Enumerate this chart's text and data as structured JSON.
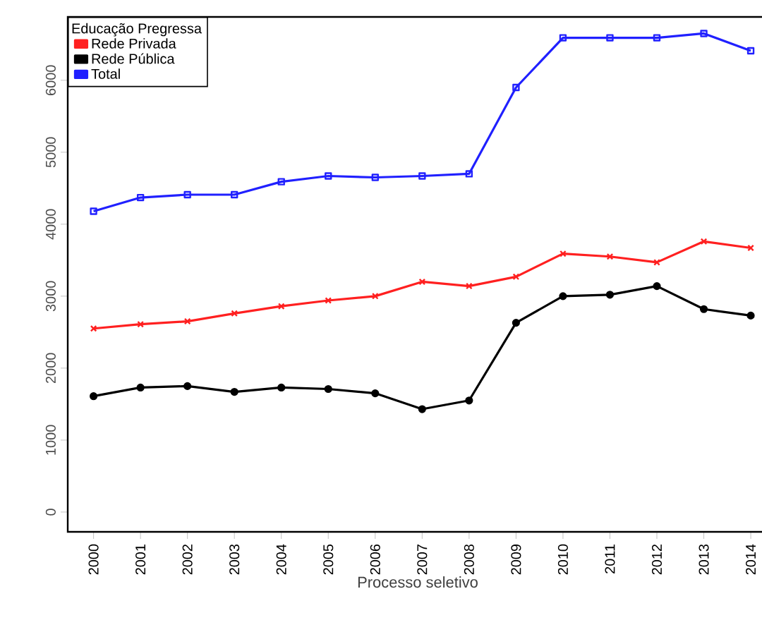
{
  "chart_data": {
    "type": "line",
    "xlabel": "Processo seletivo",
    "legend_title": "Educação Pregressa",
    "legend": "top left",
    "grid": false,
    "categories": [
      "2000",
      "2001",
      "2002",
      "2003",
      "2004",
      "2005",
      "2006",
      "2007",
      "2008",
      "2009",
      "2010",
      "2011",
      "2012",
      "2013",
      "2014"
    ],
    "ylim": [
      -275,
      6880
    ],
    "yticks": [
      0,
      1000,
      2000,
      3000,
      4000,
      5000,
      6000
    ],
    "series": [
      {
        "name": "Rede Privada",
        "color": "#ff2020",
        "marker": "cross",
        "values": [
          2550,
          2610,
          2650,
          2760,
          2860,
          2940,
          3000,
          3200,
          3140,
          3270,
          3590,
          3550,
          3470,
          3760,
          3670
        ]
      },
      {
        "name": "Rede Pública",
        "color": "#000000",
        "marker": "circle",
        "values": [
          1610,
          1730,
          1750,
          1670,
          1730,
          1710,
          1650,
          1430,
          1550,
          2630,
          3000,
          3020,
          3140,
          2820,
          2730
        ]
      },
      {
        "name": "Total",
        "color": "#2020ff",
        "marker": "square",
        "values": [
          4180,
          4370,
          4410,
          4410,
          4590,
          4670,
          4650,
          4670,
          4700,
          5900,
          6590,
          6590,
          6590,
          6650,
          6410
        ]
      }
    ]
  }
}
